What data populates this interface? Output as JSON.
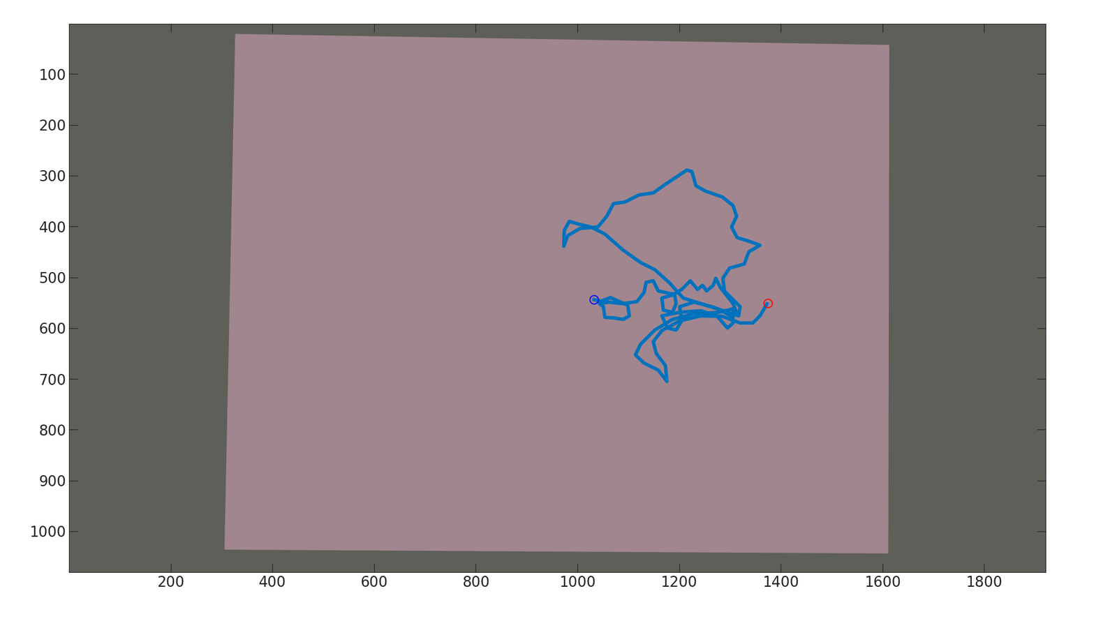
{
  "chart_data": {
    "type": "line",
    "xlim": [
      0.5,
      1920.5
    ],
    "ylim": [
      1080.5,
      0.5
    ],
    "xticks": [
      200,
      400,
      600,
      800,
      1000,
      1200,
      1400,
      1600,
      1800
    ],
    "yticks": [
      100,
      200,
      300,
      400,
      500,
      600,
      700,
      800,
      900,
      1000
    ],
    "grid": false,
    "series": [
      {
        "type": "line",
        "color": "#0072bd",
        "x": [
          1032,
          1047,
          1065,
          1085,
          1099,
          1102,
          1090,
          1071,
          1054,
          1051,
          1043,
          1061,
          1089,
          1117,
          1131,
          1135,
          1149,
          1159,
          1191,
          1194,
          1187,
          1169,
          1166,
          1187,
          1205,
          1222,
          1236,
          1246,
          1254,
          1267,
          1272,
          1281,
          1295,
          1306,
          1314,
          1303,
          1278,
          1243,
          1208,
          1180,
          1152,
          1124,
          1089,
          1054,
          1026,
          1001,
          984,
          974,
          973,
          981,
          1005,
          1040,
          1057,
          1071,
          1093,
          1121,
          1149,
          1173,
          1194,
          1215,
          1225,
          1233,
          1253,
          1285,
          1306,
          1313,
          1303,
          1314,
          1337,
          1359,
          1337,
          1328,
          1299,
          1286,
          1289,
          1303,
          1320,
          1317,
          1295,
          1264,
          1229,
          1201,
          1205,
          1194,
          1177,
          1166,
          1201,
          1243,
          1275,
          1295,
          1306,
          1306,
          1278,
          1229,
          1187,
          1152,
          1124,
          1114,
          1131,
          1159,
          1176,
          1173,
          1155,
          1149,
          1166,
          1201,
          1243,
          1285,
          1320,
          1345,
          1359,
          1373
        ],
        "values": [
          544,
          547,
          540,
          549,
          555,
          576,
          583,
          580,
          579,
          558,
          552,
          549,
          552,
          548,
          530,
          510,
          507,
          527,
          534,
          552,
          569,
          565,
          541,
          535,
          524,
          507,
          524,
          516,
          527,
          516,
          502,
          520,
          538,
          552,
          572,
          577,
          563,
          552,
          541,
          510,
          485,
          471,
          446,
          415,
          401,
          395,
          390,
          408,
          439,
          418,
          404,
          401,
          381,
          355,
          352,
          338,
          334,
          317,
          303,
          289,
          292,
          320,
          331,
          342,
          359,
          380,
          401,
          422,
          429,
          437,
          450,
          474,
          482,
          502,
          527,
          541,
          558,
          576,
          569,
          558,
          549,
          558,
          586,
          604,
          600,
          576,
          569,
          566,
          577,
          600,
          590,
          562,
          569,
          572,
          583,
          604,
          632,
          653,
          669,
          683,
          705,
          674,
          650,
          627,
          605,
          586,
          576,
          577,
          590,
          590,
          576,
          552
        ]
      },
      {
        "type": "scatter",
        "marker": "o",
        "color": "#0000ff",
        "x": [
          1032
        ],
        "values": [
          544
        ]
      },
      {
        "type": "scatter",
        "marker": "o",
        "color": "#ff0000",
        "x": [
          1375
        ],
        "values": [
          551
        ]
      }
    ]
  }
}
